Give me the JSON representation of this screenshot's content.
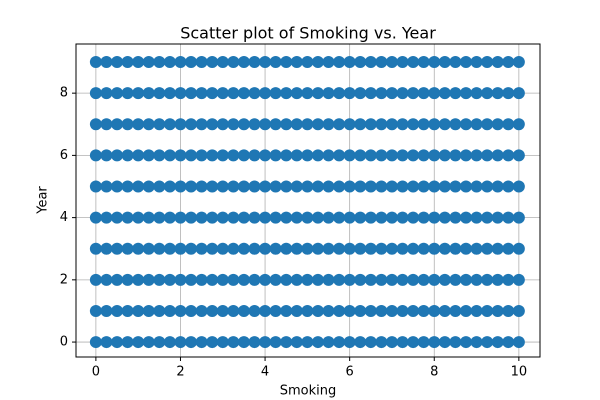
{
  "chart_data": {
    "type": "scatter",
    "title": "Scatter plot of Smoking vs. Year",
    "x_label": "Smoking",
    "y_label": "Year",
    "color": "#1f77b4",
    "grid": true,
    "xlim": [
      -0.47,
      10.5
    ],
    "ylim": [
      -0.48,
      9.58
    ],
    "xticks": [
      0,
      2,
      4,
      6,
      8,
      10
    ],
    "yticks": [
      0,
      2,
      4,
      6,
      8
    ],
    "x": [
      0,
      0.25,
      0.5,
      0.75,
      1,
      1.25,
      1.5,
      1.75,
      2,
      2.25,
      2.5,
      2.75,
      3,
      3.25,
      3.5,
      3.75,
      4,
      4.25,
      4.5,
      4.75,
      5,
      5.25,
      5.5,
      5.75,
      6,
      6.25,
      6.5,
      6.75,
      7,
      7.25,
      7.5,
      7.75,
      8,
      8.25,
      8.5,
      8.75,
      9,
      9.25,
      9.5,
      9.75,
      10,
      0,
      0.25,
      0.5,
      0.75,
      1,
      1.25,
      1.5,
      1.75,
      2,
      2.25,
      2.5,
      2.75,
      3,
      3.25,
      3.5,
      3.75,
      4,
      4.25,
      4.5,
      4.75,
      5,
      5.25,
      5.5,
      5.75,
      6,
      6.25,
      6.5,
      6.75,
      7,
      7.25,
      7.5,
      7.75,
      8,
      8.25,
      8.5,
      8.75,
      9,
      9.25,
      9.5,
      9.75,
      10,
      0,
      0.25,
      0.5,
      0.75,
      1,
      1.25,
      1.5,
      1.75,
      2,
      2.25,
      2.5,
      2.75,
      3,
      3.25,
      3.5,
      3.75,
      4,
      4.25,
      4.5,
      4.75,
      5,
      5.25,
      5.5,
      5.75,
      6,
      6.25,
      6.5,
      6.75,
      7,
      7.25,
      7.5,
      7.75,
      8,
      8.25,
      8.5,
      8.75,
      9,
      9.25,
      9.5,
      9.75,
      10,
      0,
      0.25,
      0.5,
      0.75,
      1,
      1.25,
      1.5,
      1.75,
      2,
      2.25,
      2.5,
      2.75,
      3,
      3.25,
      3.5,
      3.75,
      4,
      4.25,
      4.5,
      4.75,
      5,
      5.25,
      5.5,
      5.75,
      6,
      6.25,
      6.5,
      6.75,
      7,
      7.25,
      7.5,
      7.75,
      8,
      8.25,
      8.5,
      8.75,
      9,
      9.25,
      9.5,
      9.75,
      10,
      0,
      0.25,
      0.5,
      0.75,
      1,
      1.25,
      1.5,
      1.75,
      2,
      2.25,
      2.5,
      2.75,
      3,
      3.25,
      3.5,
      3.75,
      4,
      4.25,
      4.5,
      4.75,
      5,
      5.25,
      5.5,
      5.75,
      6,
      6.25,
      6.5,
      6.75,
      7,
      7.25,
      7.5,
      7.75,
      8,
      8.25,
      8.5,
      8.75,
      9,
      9.25,
      9.5,
      9.75,
      10,
      0,
      0.25,
      0.5,
      0.75,
      1,
      1.25,
      1.5,
      1.75,
      2,
      2.25,
      2.5,
      2.75,
      3,
      3.25,
      3.5,
      3.75,
      4,
      4.25,
      4.5,
      4.75,
      5,
      5.25,
      5.5,
      5.75,
      6,
      6.25,
      6.5,
      6.75,
      7,
      7.25,
      7.5,
      7.75,
      8,
      8.25,
      8.5,
      8.75,
      9,
      9.25,
      9.5,
      9.75,
      10,
      0,
      0.25,
      0.5,
      0.75,
      1,
      1.25,
      1.5,
      1.75,
      2,
      2.25,
      2.5,
      2.75,
      3,
      3.25,
      3.5,
      3.75,
      4,
      4.25,
      4.5,
      4.75,
      5,
      5.25,
      5.5,
      5.75,
      6,
      6.25,
      6.5,
      6.75,
      7,
      7.25,
      7.5,
      7.75,
      8,
      8.25,
      8.5,
      8.75,
      9,
      9.25,
      9.5,
      9.75,
      10,
      0,
      0.25,
      0.5,
      0.75,
      1,
      1.25,
      1.5,
      1.75,
      2,
      2.25,
      2.5,
      2.75,
      3,
      3.25,
      3.5,
      3.75,
      4,
      4.25,
      4.5,
      4.75,
      5,
      5.25,
      5.5,
      5.75,
      6,
      6.25,
      6.5,
      6.75,
      7,
      7.25,
      7.5,
      7.75,
      8,
      8.25,
      8.5,
      8.75,
      9,
      9.25,
      9.5,
      9.75,
      10,
      0,
      0.25,
      0.5,
      0.75,
      1,
      1.25,
      1.5,
      1.75,
      2,
      2.25,
      2.5,
      2.75,
      3,
      3.25,
      3.5,
      3.75,
      4,
      4.25,
      4.5,
      4.75,
      5,
      5.25,
      5.5,
      5.75,
      6,
      6.25,
      6.5,
      6.75,
      7,
      7.25,
      7.5,
      7.75,
      8,
      8.25,
      8.5,
      8.75,
      9,
      9.25,
      9.5,
      9.75,
      10,
      0,
      0.25,
      0.5,
      0.75,
      1,
      1.25,
      1.5,
      1.75,
      2,
      2.25,
      2.5,
      2.75,
      3,
      3.25,
      3.5,
      3.75,
      4,
      4.25,
      4.5,
      4.75,
      5,
      5.25,
      5.5,
      5.75,
      6,
      6.25,
      6.5,
      6.75,
      7,
      7.25,
      7.5,
      7.75,
      8,
      8.25,
      8.5,
      8.75,
      9,
      9.25,
      9.5,
      9.75,
      10
    ],
    "values": [
      0,
      0,
      0,
      0,
      0,
      0,
      0,
      0,
      0,
      0,
      0,
      0,
      0,
      0,
      0,
      0,
      0,
      0,
      0,
      0,
      0,
      0,
      0,
      0,
      0,
      0,
      0,
      0,
      0,
      0,
      0,
      0,
      0,
      0,
      0,
      0,
      0,
      0,
      0,
      0,
      0,
      1,
      1,
      1,
      1,
      1,
      1,
      1,
      1,
      1,
      1,
      1,
      1,
      1,
      1,
      1,
      1,
      1,
      1,
      1,
      1,
      1,
      1,
      1,
      1,
      1,
      1,
      1,
      1,
      1,
      1,
      1,
      1,
      1,
      1,
      1,
      1,
      1,
      1,
      1,
      1,
      1,
      2,
      2,
      2,
      2,
      2,
      2,
      2,
      2,
      2,
      2,
      2,
      2,
      2,
      2,
      2,
      2,
      2,
      2,
      2,
      2,
      2,
      2,
      2,
      2,
      2,
      2,
      2,
      2,
      2,
      2,
      2,
      2,
      2,
      2,
      2,
      2,
      2,
      2,
      2,
      2,
      2,
      3,
      3,
      3,
      3,
      3,
      3,
      3,
      3,
      3,
      3,
      3,
      3,
      3,
      3,
      3,
      3,
      3,
      3,
      3,
      3,
      3,
      3,
      3,
      3,
      3,
      3,
      3,
      3,
      3,
      3,
      3,
      3,
      3,
      3,
      3,
      3,
      3,
      3,
      3,
      3,
      3,
      4,
      4,
      4,
      4,
      4,
      4,
      4,
      4,
      4,
      4,
      4,
      4,
      4,
      4,
      4,
      4,
      4,
      4,
      4,
      4,
      4,
      4,
      4,
      4,
      4,
      4,
      4,
      4,
      4,
      4,
      4,
      4,
      4,
      4,
      4,
      4,
      4,
      4,
      4,
      4,
      4,
      5,
      5,
      5,
      5,
      5,
      5,
      5,
      5,
      5,
      5,
      5,
      5,
      5,
      5,
      5,
      5,
      5,
      5,
      5,
      5,
      5,
      5,
      5,
      5,
      5,
      5,
      5,
      5,
      5,
      5,
      5,
      5,
      5,
      5,
      5,
      5,
      5,
      5,
      5,
      5,
      5,
      6,
      6,
      6,
      6,
      6,
      6,
      6,
      6,
      6,
      6,
      6,
      6,
      6,
      6,
      6,
      6,
      6,
      6,
      6,
      6,
      6,
      6,
      6,
      6,
      6,
      6,
      6,
      6,
      6,
      6,
      6,
      6,
      6,
      6,
      6,
      6,
      6,
      6,
      6,
      6,
      6,
      7,
      7,
      7,
      7,
      7,
      7,
      7,
      7,
      7,
      7,
      7,
      7,
      7,
      7,
      7,
      7,
      7,
      7,
      7,
      7,
      7,
      7,
      7,
      7,
      7,
      7,
      7,
      7,
      7,
      7,
      7,
      7,
      7,
      7,
      7,
      7,
      7,
      7,
      7,
      7,
      7,
      8,
      8,
      8,
      8,
      8,
      8,
      8,
      8,
      8,
      8,
      8,
      8,
      8,
      8,
      8,
      8,
      8,
      8,
      8,
      8,
      8,
      8,
      8,
      8,
      8,
      8,
      8,
      8,
      8,
      8,
      8,
      8,
      8,
      8,
      8,
      8,
      8,
      8,
      8,
      8,
      8,
      9,
      9,
      9,
      9,
      9,
      9,
      9,
      9,
      9,
      9,
      9,
      9,
      9,
      9,
      9,
      9,
      9,
      9,
      9,
      9,
      9,
      9,
      9,
      9,
      9,
      9,
      9,
      9,
      9,
      9,
      9,
      9,
      9,
      9,
      9,
      9,
      9,
      9,
      9,
      9,
      9
    ]
  }
}
